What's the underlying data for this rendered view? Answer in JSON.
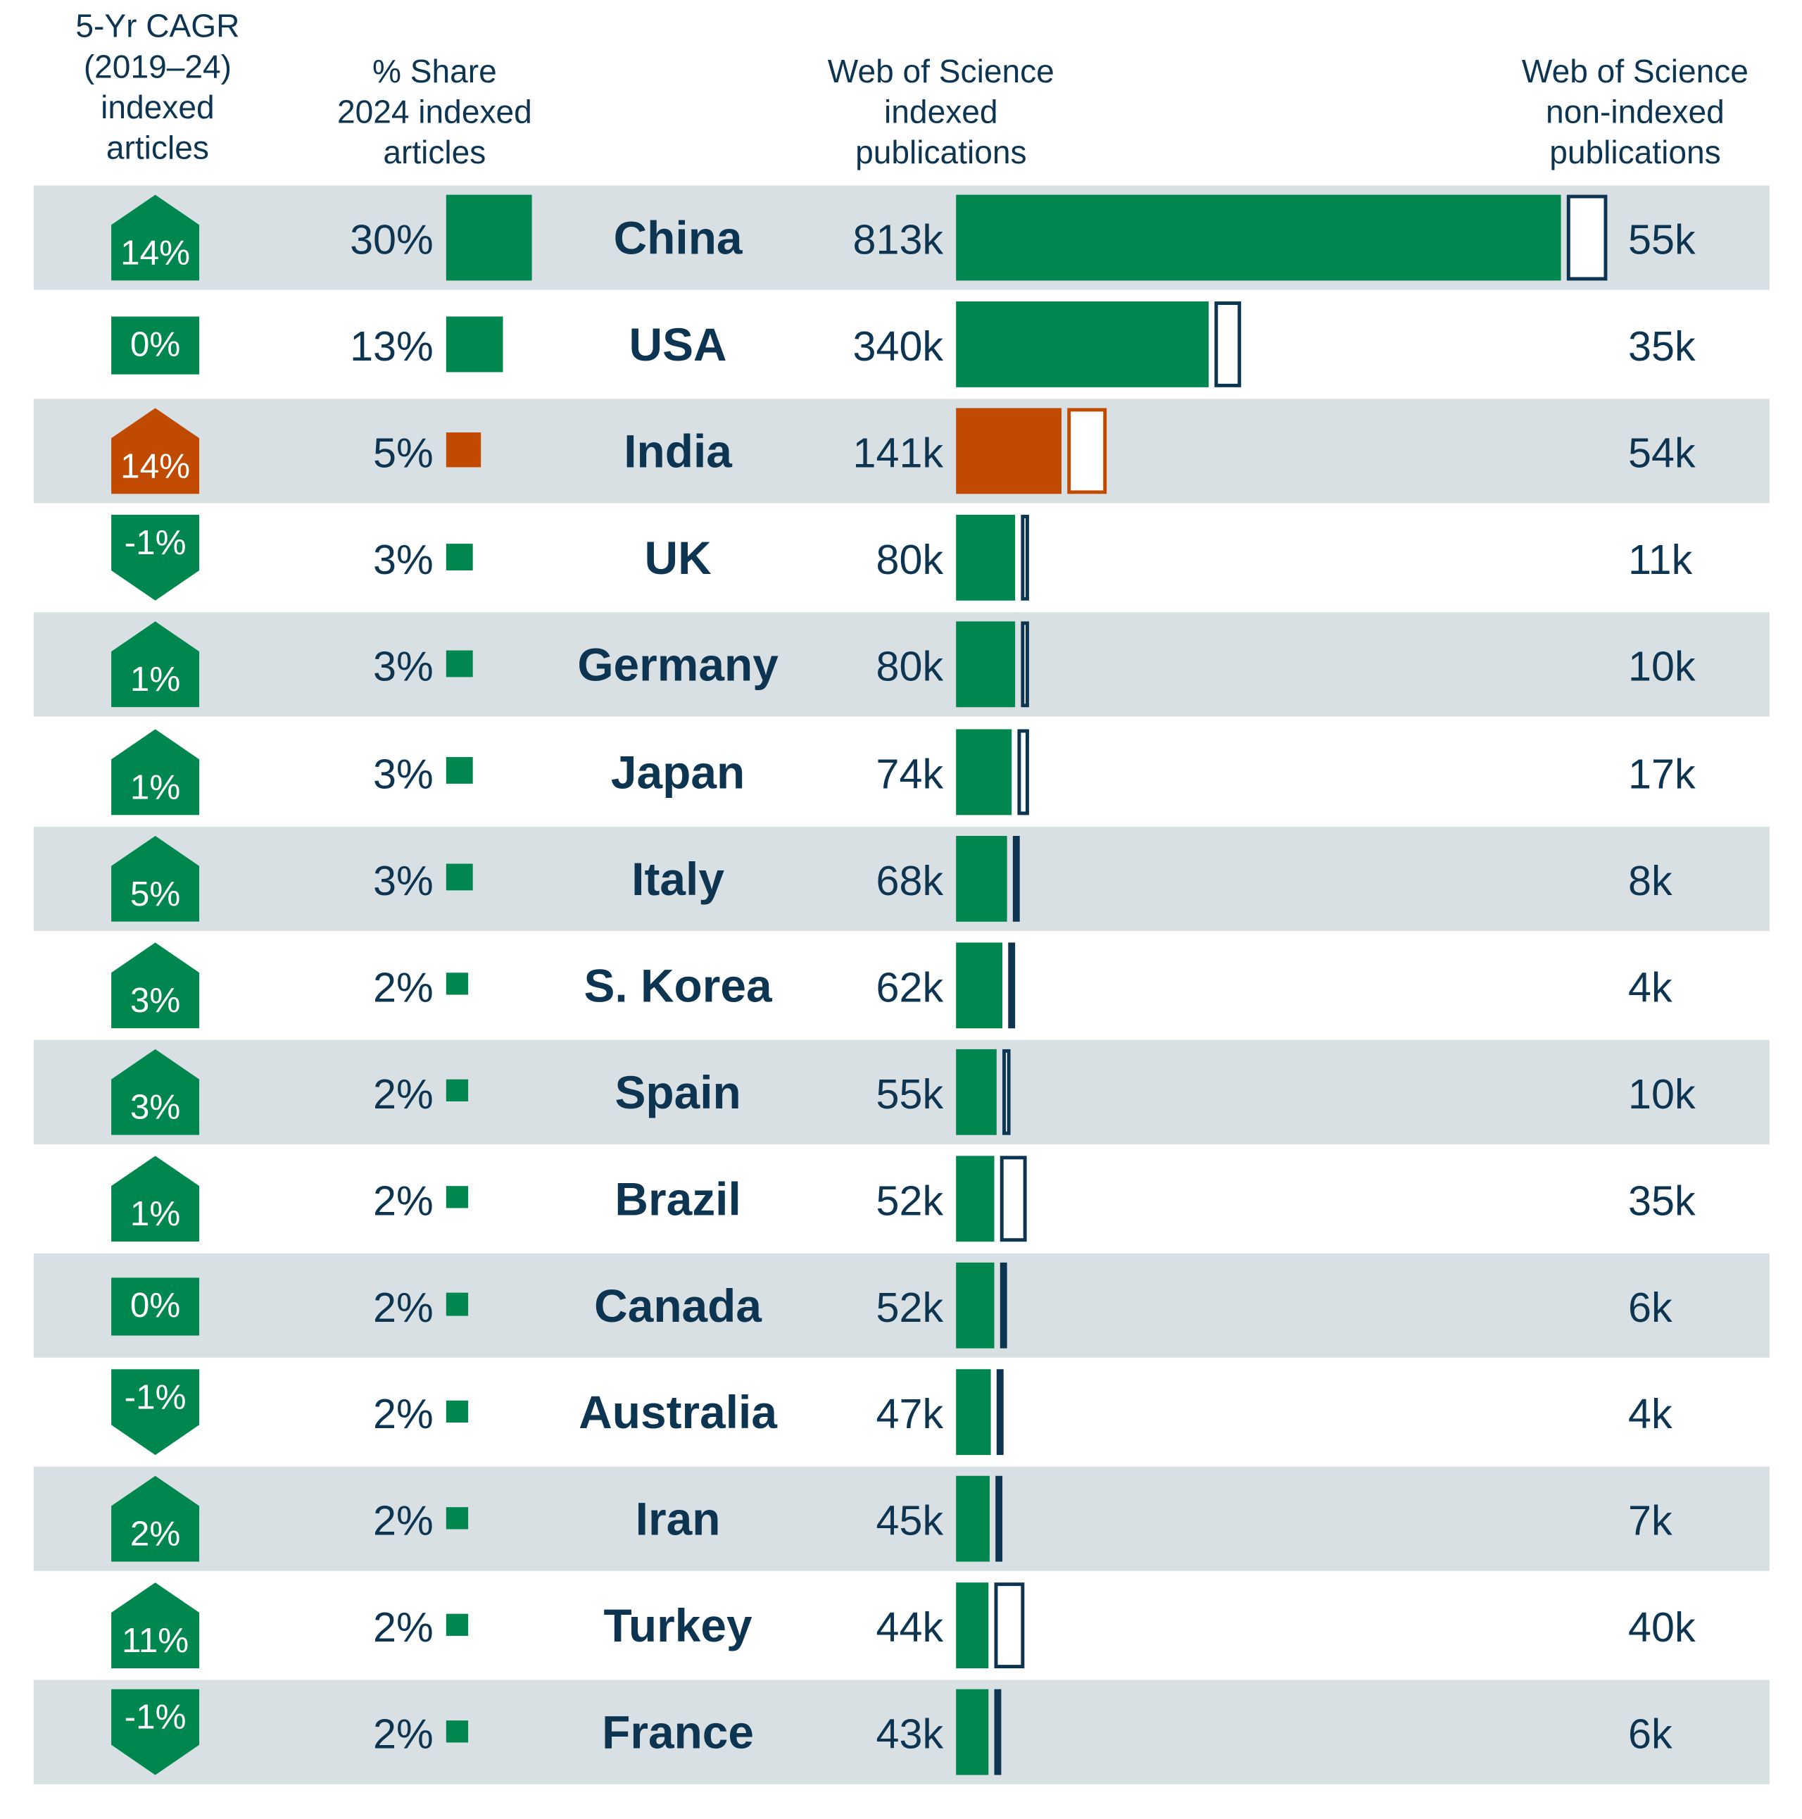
{
  "headers": {
    "cagr": [
      "5-Yr CAGR",
      "(2019–24)",
      "indexed",
      "articles"
    ],
    "share": [
      "% Share",
      "2024 indexed",
      "articles"
    ],
    "indexed": [
      "Web of Science",
      "indexed",
      "publications"
    ],
    "nonindexed": [
      "Web of Science",
      "non-indexed",
      "publications"
    ]
  },
  "colors": {
    "green": "#00874f",
    "highlight": "#c04a00",
    "navy": "#0d3552",
    "row_shade": "#d9e0e4"
  },
  "chart_data": {
    "type": "table",
    "title": "",
    "rows": [
      {
        "country": "China",
        "cagr_label": "14%",
        "cagr": 14,
        "share_label": "30%",
        "share": 30,
        "indexed_label": "813k",
        "indexed": 813,
        "nonindexed_label": "55k",
        "nonindexed": 55,
        "highlight": false
      },
      {
        "country": "USA",
        "cagr_label": "0%",
        "cagr": 0,
        "share_label": "13%",
        "share": 13,
        "indexed_label": "340k",
        "indexed": 340,
        "nonindexed_label": "35k",
        "nonindexed": 35,
        "highlight": false
      },
      {
        "country": "India",
        "cagr_label": "14%",
        "cagr": 14,
        "share_label": "5%",
        "share": 5,
        "indexed_label": "141k",
        "indexed": 141,
        "nonindexed_label": "54k",
        "nonindexed": 54,
        "highlight": true
      },
      {
        "country": "UK",
        "cagr_label": "-1%",
        "cagr": -1,
        "share_label": "3%",
        "share": 3,
        "indexed_label": "80k",
        "indexed": 80,
        "nonindexed_label": "11k",
        "nonindexed": 11,
        "highlight": false
      },
      {
        "country": "Germany",
        "cagr_label": "1%",
        "cagr": 1,
        "share_label": "3%",
        "share": 3,
        "indexed_label": "80k",
        "indexed": 80,
        "nonindexed_label": "10k",
        "nonindexed": 10,
        "highlight": false
      },
      {
        "country": "Japan",
        "cagr_label": "1%",
        "cagr": 1,
        "share_label": "3%",
        "share": 3,
        "indexed_label": "74k",
        "indexed": 74,
        "nonindexed_label": "17k",
        "nonindexed": 17,
        "highlight": false
      },
      {
        "country": "Italy",
        "cagr_label": "5%",
        "cagr": 5,
        "share_label": "3%",
        "share": 3,
        "indexed_label": "68k",
        "indexed": 68,
        "nonindexed_label": "8k",
        "nonindexed": 8,
        "highlight": false
      },
      {
        "country": "S. Korea",
        "cagr_label": "3%",
        "cagr": 3,
        "share_label": "2%",
        "share": 2,
        "indexed_label": "62k",
        "indexed": 62,
        "nonindexed_label": "4k",
        "nonindexed": 4,
        "highlight": false
      },
      {
        "country": "Spain",
        "cagr_label": "3%",
        "cagr": 3,
        "share_label": "2%",
        "share": 2,
        "indexed_label": "55k",
        "indexed": 55,
        "nonindexed_label": "10k",
        "nonindexed": 10,
        "highlight": false
      },
      {
        "country": "Brazil",
        "cagr_label": "1%",
        "cagr": 1,
        "share_label": "2%",
        "share": 2,
        "indexed_label": "52k",
        "indexed": 52,
        "nonindexed_label": "35k",
        "nonindexed": 35,
        "highlight": false
      },
      {
        "country": "Canada",
        "cagr_label": "0%",
        "cagr": 0,
        "share_label": "2%",
        "share": 2,
        "indexed_label": "52k",
        "indexed": 52,
        "nonindexed_label": "6k",
        "nonindexed": 6,
        "highlight": false
      },
      {
        "country": "Australia",
        "cagr_label": "-1%",
        "cagr": -1,
        "share_label": "2%",
        "share": 2,
        "indexed_label": "47k",
        "indexed": 47,
        "nonindexed_label": "4k",
        "nonindexed": 4,
        "highlight": false
      },
      {
        "country": "Iran",
        "cagr_label": "2%",
        "cagr": 2,
        "share_label": "2%",
        "share": 2,
        "indexed_label": "45k",
        "indexed": 45,
        "nonindexed_label": "7k",
        "nonindexed": 7,
        "highlight": false
      },
      {
        "country": "Turkey",
        "cagr_label": "11%",
        "cagr": 11,
        "share_label": "2%",
        "share": 2,
        "indexed_label": "44k",
        "indexed": 44,
        "nonindexed_label": "40k",
        "nonindexed": 40,
        "highlight": false
      },
      {
        "country": "France",
        "cagr_label": "-1%",
        "cagr": -1,
        "share_label": "2%",
        "share": 2,
        "indexed_label": "43k",
        "indexed": 43,
        "nonindexed_label": "6k",
        "nonindexed": 6,
        "highlight": false
      }
    ]
  }
}
